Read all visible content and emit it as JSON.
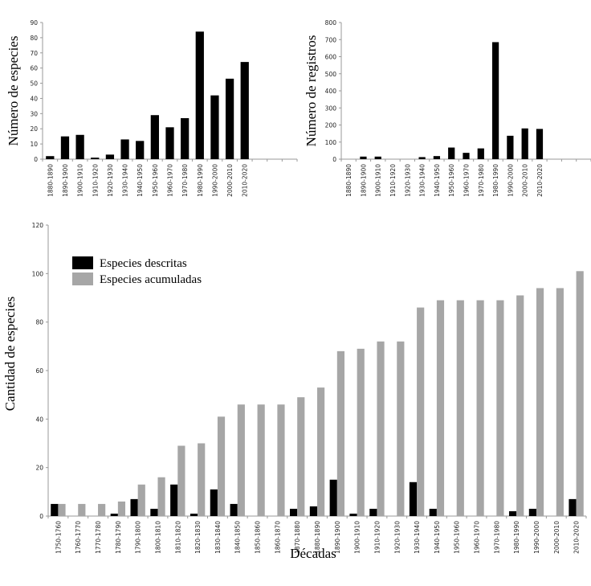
{
  "chart_data": [
    {
      "type": "bar",
      "ylabel": "Número de especies",
      "xlabel": "",
      "ylim": [
        0,
        90
      ],
      "yticks": [
        0,
        10,
        20,
        30,
        40,
        50,
        60,
        70,
        80,
        90
      ],
      "categories": [
        "1880-1890",
        "1890-1900",
        "1900-1910",
        "1910-1920",
        "1920-1930",
        "1930-1940",
        "1940-1950",
        "1950-1960",
        "1960-1970",
        "1970-1980",
        "1980-1990",
        "1990-2000",
        "2000-2010",
        "2010-2020",
        "",
        "",
        ""
      ],
      "values": [
        2,
        15,
        16,
        1,
        3,
        13,
        12,
        29,
        21,
        27,
        84,
        42,
        53,
        64,
        null,
        null,
        null
      ],
      "grid": false,
      "colors": {
        "bar": "#000000"
      }
    },
    {
      "type": "bar",
      "ylabel": "Número de registros",
      "xlabel": "",
      "ylim": [
        0,
        800
      ],
      "yticks": [
        0,
        100,
        200,
        300,
        400,
        500,
        600,
        700,
        800
      ],
      "categories": [
        "1880-1890",
        "1890-1900",
        "1900-1910",
        "1910-1920",
        "1920-1930",
        "1930-1940",
        "1940-1950",
        "1950-1960",
        "1960-1970",
        "1970-1980",
        "1980-1990",
        "1990-2000",
        "2000-2010",
        "2010-2020",
        "",
        "",
        ""
      ],
      "values": [
        0,
        15,
        15,
        0,
        0,
        12,
        18,
        68,
        37,
        63,
        685,
        137,
        180,
        177,
        null,
        null,
        null
      ],
      "grid": false,
      "colors": {
        "bar": "#000000"
      }
    },
    {
      "type": "bar",
      "ylabel": "Cantidad de especies",
      "xlabel": "Décadas",
      "ylim": [
        0,
        120
      ],
      "yticks": [
        0,
        20,
        40,
        60,
        80,
        100,
        120
      ],
      "legend": "top-left",
      "categories": [
        "1750-1760",
        "1760-1770",
        "1770-1780",
        "1780-1790",
        "1790-1800",
        "1800-1810",
        "1810-1820",
        "1820-1830",
        "1830-1840",
        "1840-1850",
        "1850-1860",
        "1860-1870",
        "1870-1880",
        "1880-1890",
        "1890-1900",
        "1900-1910",
        "1910-1920",
        "1920-1930",
        "1930-1940",
        "1940-1950",
        "1950-1960",
        "1960-1970",
        "1970-1980",
        "1980-1990",
        "1990-2000",
        "2000-2010",
        "2010-2020"
      ],
      "series": [
        {
          "name": "Especies descritas",
          "color": "#000000",
          "values": [
            5,
            0,
            0,
            1,
            7,
            3,
            13,
            1,
            11,
            5,
            0,
            0,
            3,
            4,
            15,
            1,
            3,
            0,
            14,
            3,
            0,
            0,
            0,
            2,
            3,
            0,
            7
          ]
        },
        {
          "name": "Especies acumuladas",
          "color": "#a6a6a6",
          "values": [
            5,
            5,
            5,
            6,
            13,
            16,
            29,
            30,
            41,
            46,
            46,
            46,
            49,
            53,
            68,
            69,
            72,
            72,
            86,
            89,
            89,
            89,
            89,
            91,
            94,
            94,
            101
          ]
        }
      ],
      "grid": false
    }
  ]
}
